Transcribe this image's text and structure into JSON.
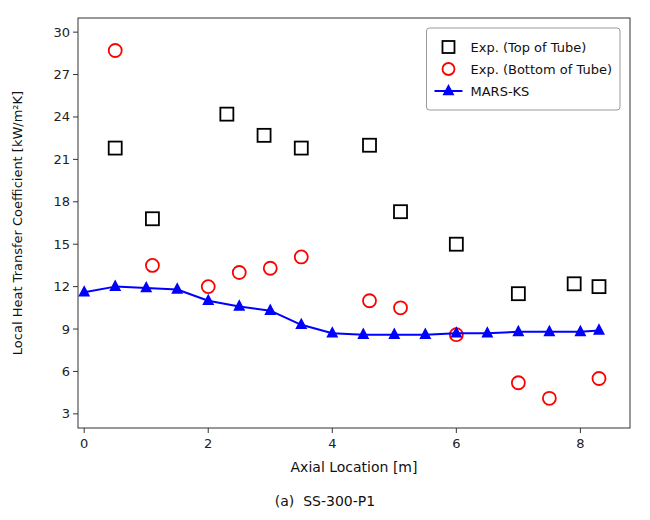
{
  "chart_data": {
    "type": "line",
    "subtitle": "(a)  SS-300-P1",
    "x_label": "Axial Location [m]",
    "y_label": "Local Heat Transfer Coefficient [kW/m²K]",
    "xlim": [
      -0.1,
      8.8
    ],
    "ylim": [
      2,
      31
    ],
    "xticks": [
      0,
      2,
      4,
      6,
      8
    ],
    "yticks": [
      3,
      6,
      9,
      12,
      15,
      18,
      21,
      24,
      27,
      30
    ],
    "grid": false,
    "legend": "upper right",
    "series": [
      {
        "name": "Exp. (Top of Tube)",
        "type": "scatter",
        "marker": "square",
        "color": "black",
        "x": [
          0.5,
          1.1,
          2.3,
          2.9,
          3.5,
          4.6,
          5.1,
          6.0,
          7.0,
          7.9,
          8.3
        ],
        "values": [
          21.8,
          16.8,
          24.2,
          22.7,
          21.8,
          22.0,
          17.3,
          15.0,
          11.5,
          12.2,
          12.0
        ]
      },
      {
        "name": "Exp. (Bottom of Tube)",
        "type": "scatter",
        "marker": "circle",
        "color": "red",
        "x": [
          0.5,
          1.1,
          2.0,
          2.5,
          3.0,
          3.5,
          4.6,
          5.1,
          6.0,
          7.0,
          7.5,
          8.3
        ],
        "values": [
          28.7,
          13.5,
          12.0,
          13.0,
          13.3,
          14.1,
          11.0,
          10.5,
          8.6,
          5.2,
          4.1,
          5.5
        ]
      },
      {
        "name": "MARS-KS",
        "type": "line",
        "marker": "triangle",
        "color": "blue",
        "x": [
          0.0,
          0.5,
          1.0,
          1.5,
          2.0,
          2.5,
          3.0,
          3.5,
          4.0,
          4.5,
          5.0,
          5.5,
          6.0,
          6.5,
          7.0,
          7.5,
          8.0,
          8.3
        ],
        "values": [
          11.6,
          12.0,
          11.9,
          11.8,
          11.0,
          10.6,
          10.3,
          9.3,
          8.7,
          8.6,
          8.6,
          8.6,
          8.7,
          8.7,
          8.8,
          8.8,
          8.8,
          8.9
        ]
      }
    ]
  }
}
